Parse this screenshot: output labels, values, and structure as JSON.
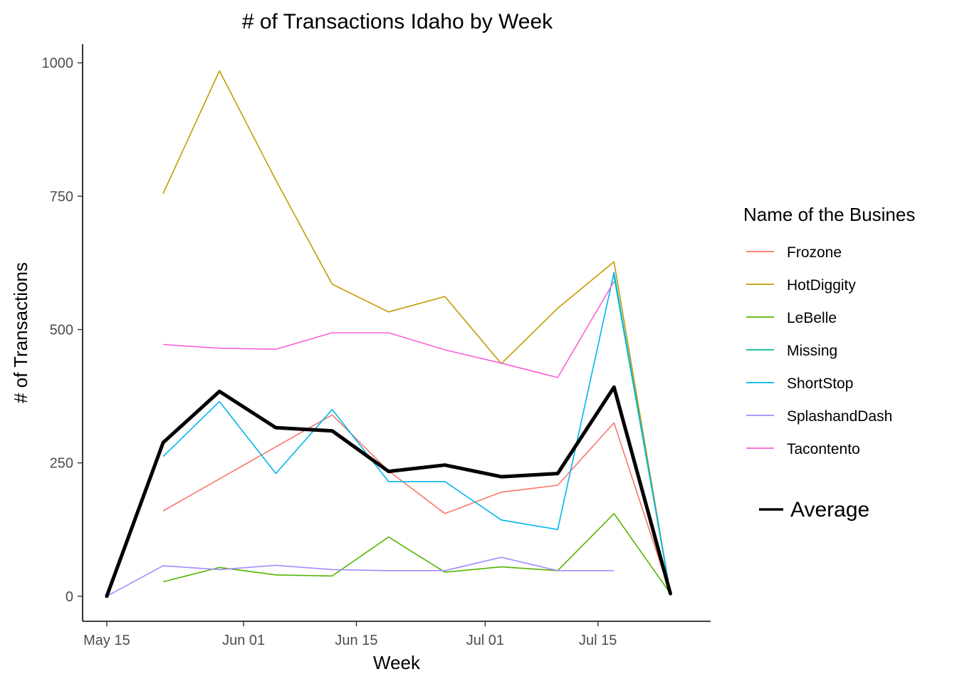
{
  "chart_data": {
    "type": "line",
    "title": "# of Transactions Idaho by Week",
    "xlabel": "Week",
    "ylabel": "# of Transactions",
    "x_ticks": [
      "May 15",
      "Jun 01",
      "Jun 15",
      "Jul 01",
      "Jul 15"
    ],
    "x_tick_dates": [
      "2021-05-15",
      "2021-06-01",
      "2021-06-15",
      "2021-07-01",
      "2021-07-15"
    ],
    "x_range": [
      "2021-05-12",
      "2021-07-29"
    ],
    "y_ticks": [
      0,
      250,
      500,
      750,
      1000
    ],
    "ylim": [
      -47,
      1035
    ],
    "grid": false,
    "legend_title": "Name of the Busines",
    "legend_position": "right",
    "series": [
      {
        "name": "Frozone",
        "color": "#F8766D",
        "x": [
          "2021-05-22",
          "2021-06-12",
          "2021-06-19",
          "2021-06-26",
          "2021-07-03",
          "2021-07-10",
          "2021-07-17",
          "2021-07-24"
        ],
        "y": [
          160,
          340,
          235,
          155,
          195,
          208,
          325,
          5
        ]
      },
      {
        "name": "HotDiggity",
        "color": "#C49A00",
        "x": [
          "2021-05-22",
          "2021-05-29",
          "2021-06-05",
          "2021-06-12",
          "2021-06-19",
          "2021-06-26",
          "2021-07-03",
          "2021-07-10",
          "2021-07-17",
          "2021-07-24"
        ],
        "y": [
          755,
          985,
          780,
          585,
          533,
          562,
          436,
          540,
          627,
          5
        ]
      },
      {
        "name": "LeBelle",
        "color": "#53B400",
        "x": [
          "2021-05-22",
          "2021-05-29",
          "2021-06-05",
          "2021-06-12",
          "2021-06-19",
          "2021-06-26",
          "2021-07-03",
          "2021-07-10",
          "2021-07-17",
          "2021-07-24"
        ],
        "y": [
          27,
          54,
          40,
          38,
          111,
          45,
          55,
          48,
          155,
          5
        ]
      },
      {
        "name": "Missing",
        "color": "#00C094",
        "x": [
          "2021-07-17",
          "2021-07-24"
        ],
        "y": [
          600,
          5
        ]
      },
      {
        "name": "ShortStop",
        "color": "#00B6EB",
        "x": [
          "2021-05-22",
          "2021-05-29",
          "2021-06-05",
          "2021-06-12",
          "2021-06-19",
          "2021-06-26",
          "2021-07-03",
          "2021-07-10",
          "2021-07-17",
          "2021-07-24"
        ],
        "y": [
          262,
          365,
          230,
          350,
          215,
          215,
          143,
          125,
          607,
          5
        ]
      },
      {
        "name": "SplashandDash",
        "color": "#A58AFF",
        "x": [
          "2021-05-15",
          "2021-05-22",
          "2021-05-29",
          "2021-06-05",
          "2021-06-12",
          "2021-06-19",
          "2021-06-26",
          "2021-07-03",
          "2021-07-10",
          "2021-07-17"
        ],
        "y": [
          0,
          57,
          50,
          58,
          50,
          48,
          48,
          73,
          48,
          48
        ]
      },
      {
        "name": "Tacontento",
        "color": "#FB61D7",
        "x": [
          "2021-05-22",
          "2021-05-29",
          "2021-06-05",
          "2021-06-12",
          "2021-06-19",
          "2021-06-26",
          "2021-07-03",
          "2021-07-10",
          "2021-07-17"
        ],
        "y": [
          472,
          465,
          463,
          494,
          494,
          462,
          437,
          410,
          590
        ]
      }
    ],
    "average": {
      "name": "Average",
      "color": "#000000",
      "x": [
        "2021-05-15",
        "2021-05-22",
        "2021-05-29",
        "2021-06-05",
        "2021-06-12",
        "2021-06-19",
        "2021-06-26",
        "2021-07-03",
        "2021-07-10",
        "2021-07-17",
        "2021-07-24"
      ],
      "y": [
        0,
        288,
        384,
        316,
        310,
        234,
        246,
        224,
        230,
        392,
        5
      ]
    }
  }
}
